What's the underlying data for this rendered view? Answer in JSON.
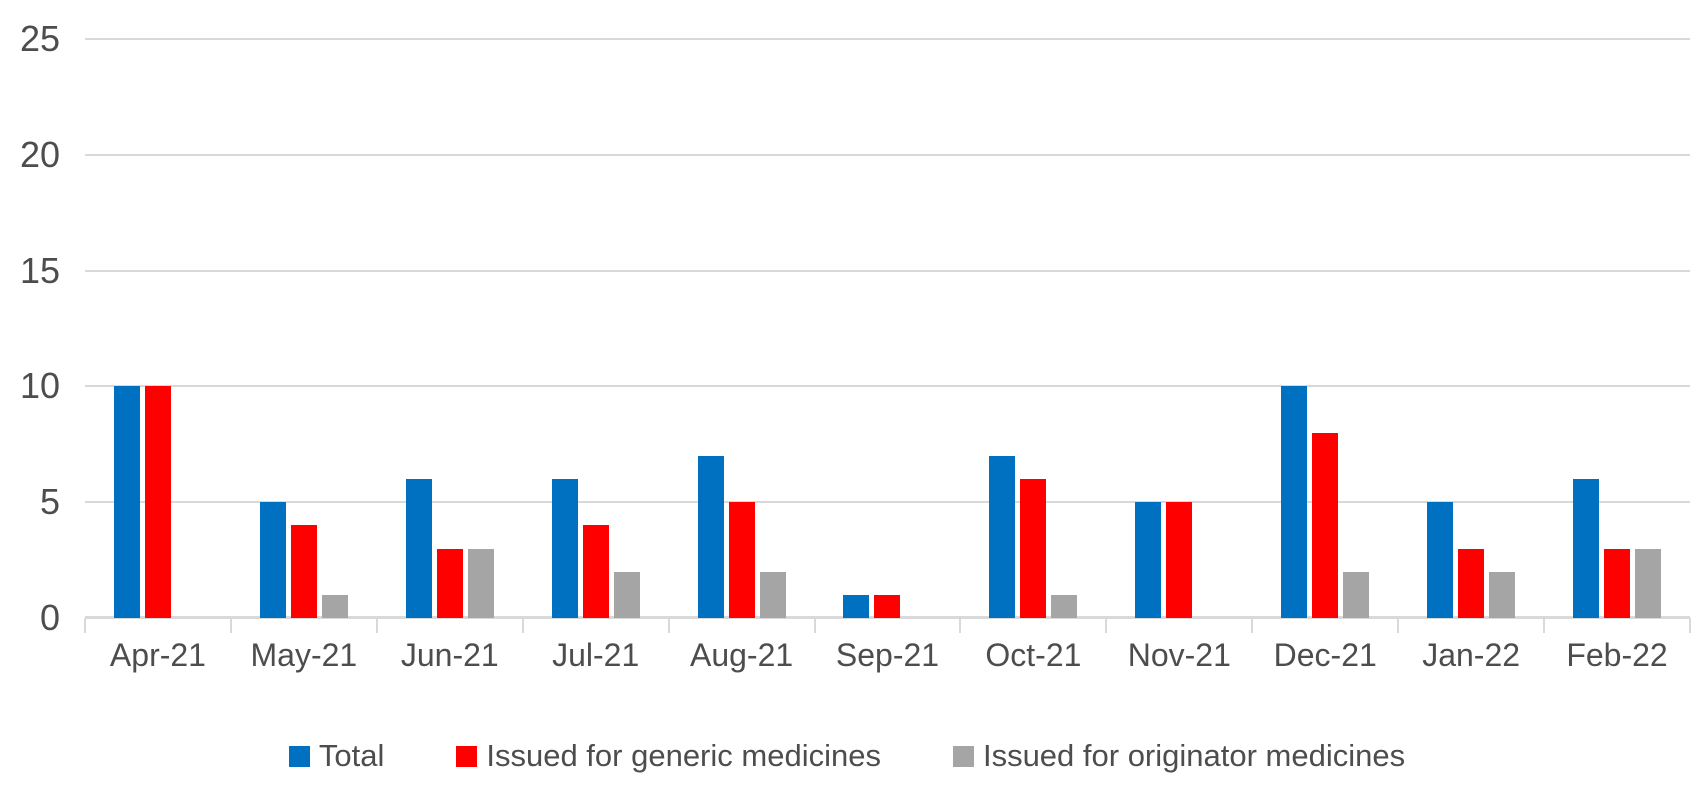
{
  "chart_data": {
    "type": "bar",
    "title": "",
    "xlabel": "",
    "ylabel": "",
    "categories": [
      "Apr-21",
      "May-21",
      "Jun-21",
      "Jul-21",
      "Aug-21",
      "Sep-21",
      "Oct-21",
      "Nov-21",
      "Dec-21",
      "Jan-22",
      "Feb-22"
    ],
    "series": [
      {
        "name": "Total",
        "color": "#0070C0",
        "values": [
          10,
          5,
          6,
          6,
          7,
          1,
          7,
          5,
          10,
          5,
          6
        ]
      },
      {
        "name": "Issued for generic medicines",
        "color": "#FF0000",
        "values": [
          10,
          4,
          3,
          4,
          5,
          1,
          6,
          5,
          8,
          3,
          3
        ]
      },
      {
        "name": "Issued for originator medicines",
        "color": "#A5A5A5",
        "values": [
          0,
          1,
          3,
          2,
          2,
          0,
          1,
          0,
          2,
          2,
          3
        ]
      }
    ],
    "ylim": [
      0,
      25
    ],
    "yticks": [
      0,
      5,
      10,
      15,
      20,
      25
    ],
    "grid": true,
    "legend_position": "bottom"
  },
  "colors": {
    "gridline": "#d9d9d9",
    "axis_text": "#4d4d4d",
    "background": "#ffffff"
  }
}
